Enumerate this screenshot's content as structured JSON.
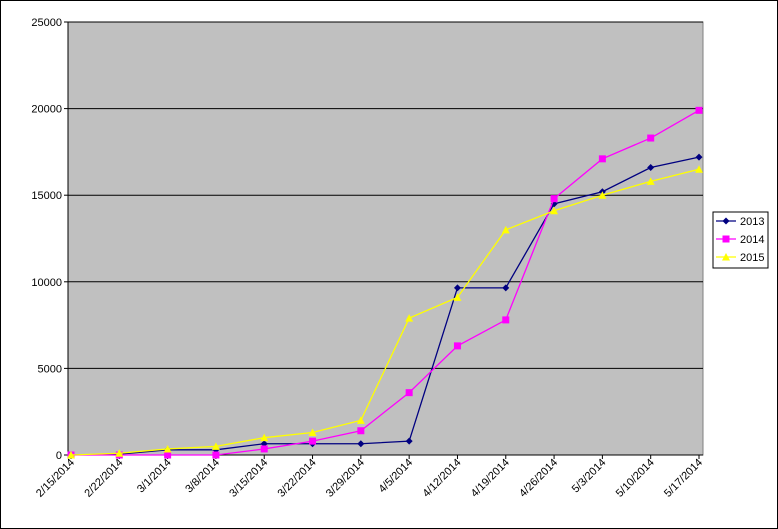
{
  "chart_data": {
    "type": "line",
    "categories": [
      "2/15/2014",
      "2/22/2014",
      "3/1/2014",
      "3/8/2014",
      "3/15/2014",
      "3/22/2014",
      "3/29/2014",
      "4/5/2014",
      "4/12/2014",
      "4/19/2014",
      "4/26/2014",
      "5/3/2014",
      "5/10/2014",
      "5/17/2014"
    ],
    "series": [
      {
        "name": "2013",
        "color": "#000080",
        "marker": "diamond",
        "values": [
          0,
          50,
          300,
          300,
          650,
          650,
          650,
          800,
          9650,
          9650,
          14500,
          15200,
          16600,
          17200
        ]
      },
      {
        "name": "2014",
        "color": "#ff00ff",
        "marker": "square",
        "values": [
          0,
          0,
          0,
          0,
          350,
          800,
          1400,
          3600,
          6300,
          7800,
          14800,
          17100,
          18300,
          19900
        ]
      },
      {
        "name": "2015",
        "color": "#ffff00",
        "marker": "triangle",
        "values": [
          0,
          100,
          350,
          500,
          1000,
          1300,
          2000,
          7900,
          9100,
          13000,
          14100,
          15000,
          15800,
          16500
        ]
      }
    ],
    "ylim": [
      0,
      25000
    ],
    "yticks": [
      0,
      5000,
      10000,
      15000,
      20000,
      25000
    ],
    "grid": true,
    "plot_background": "#c0c0c0",
    "legend": "right"
  }
}
